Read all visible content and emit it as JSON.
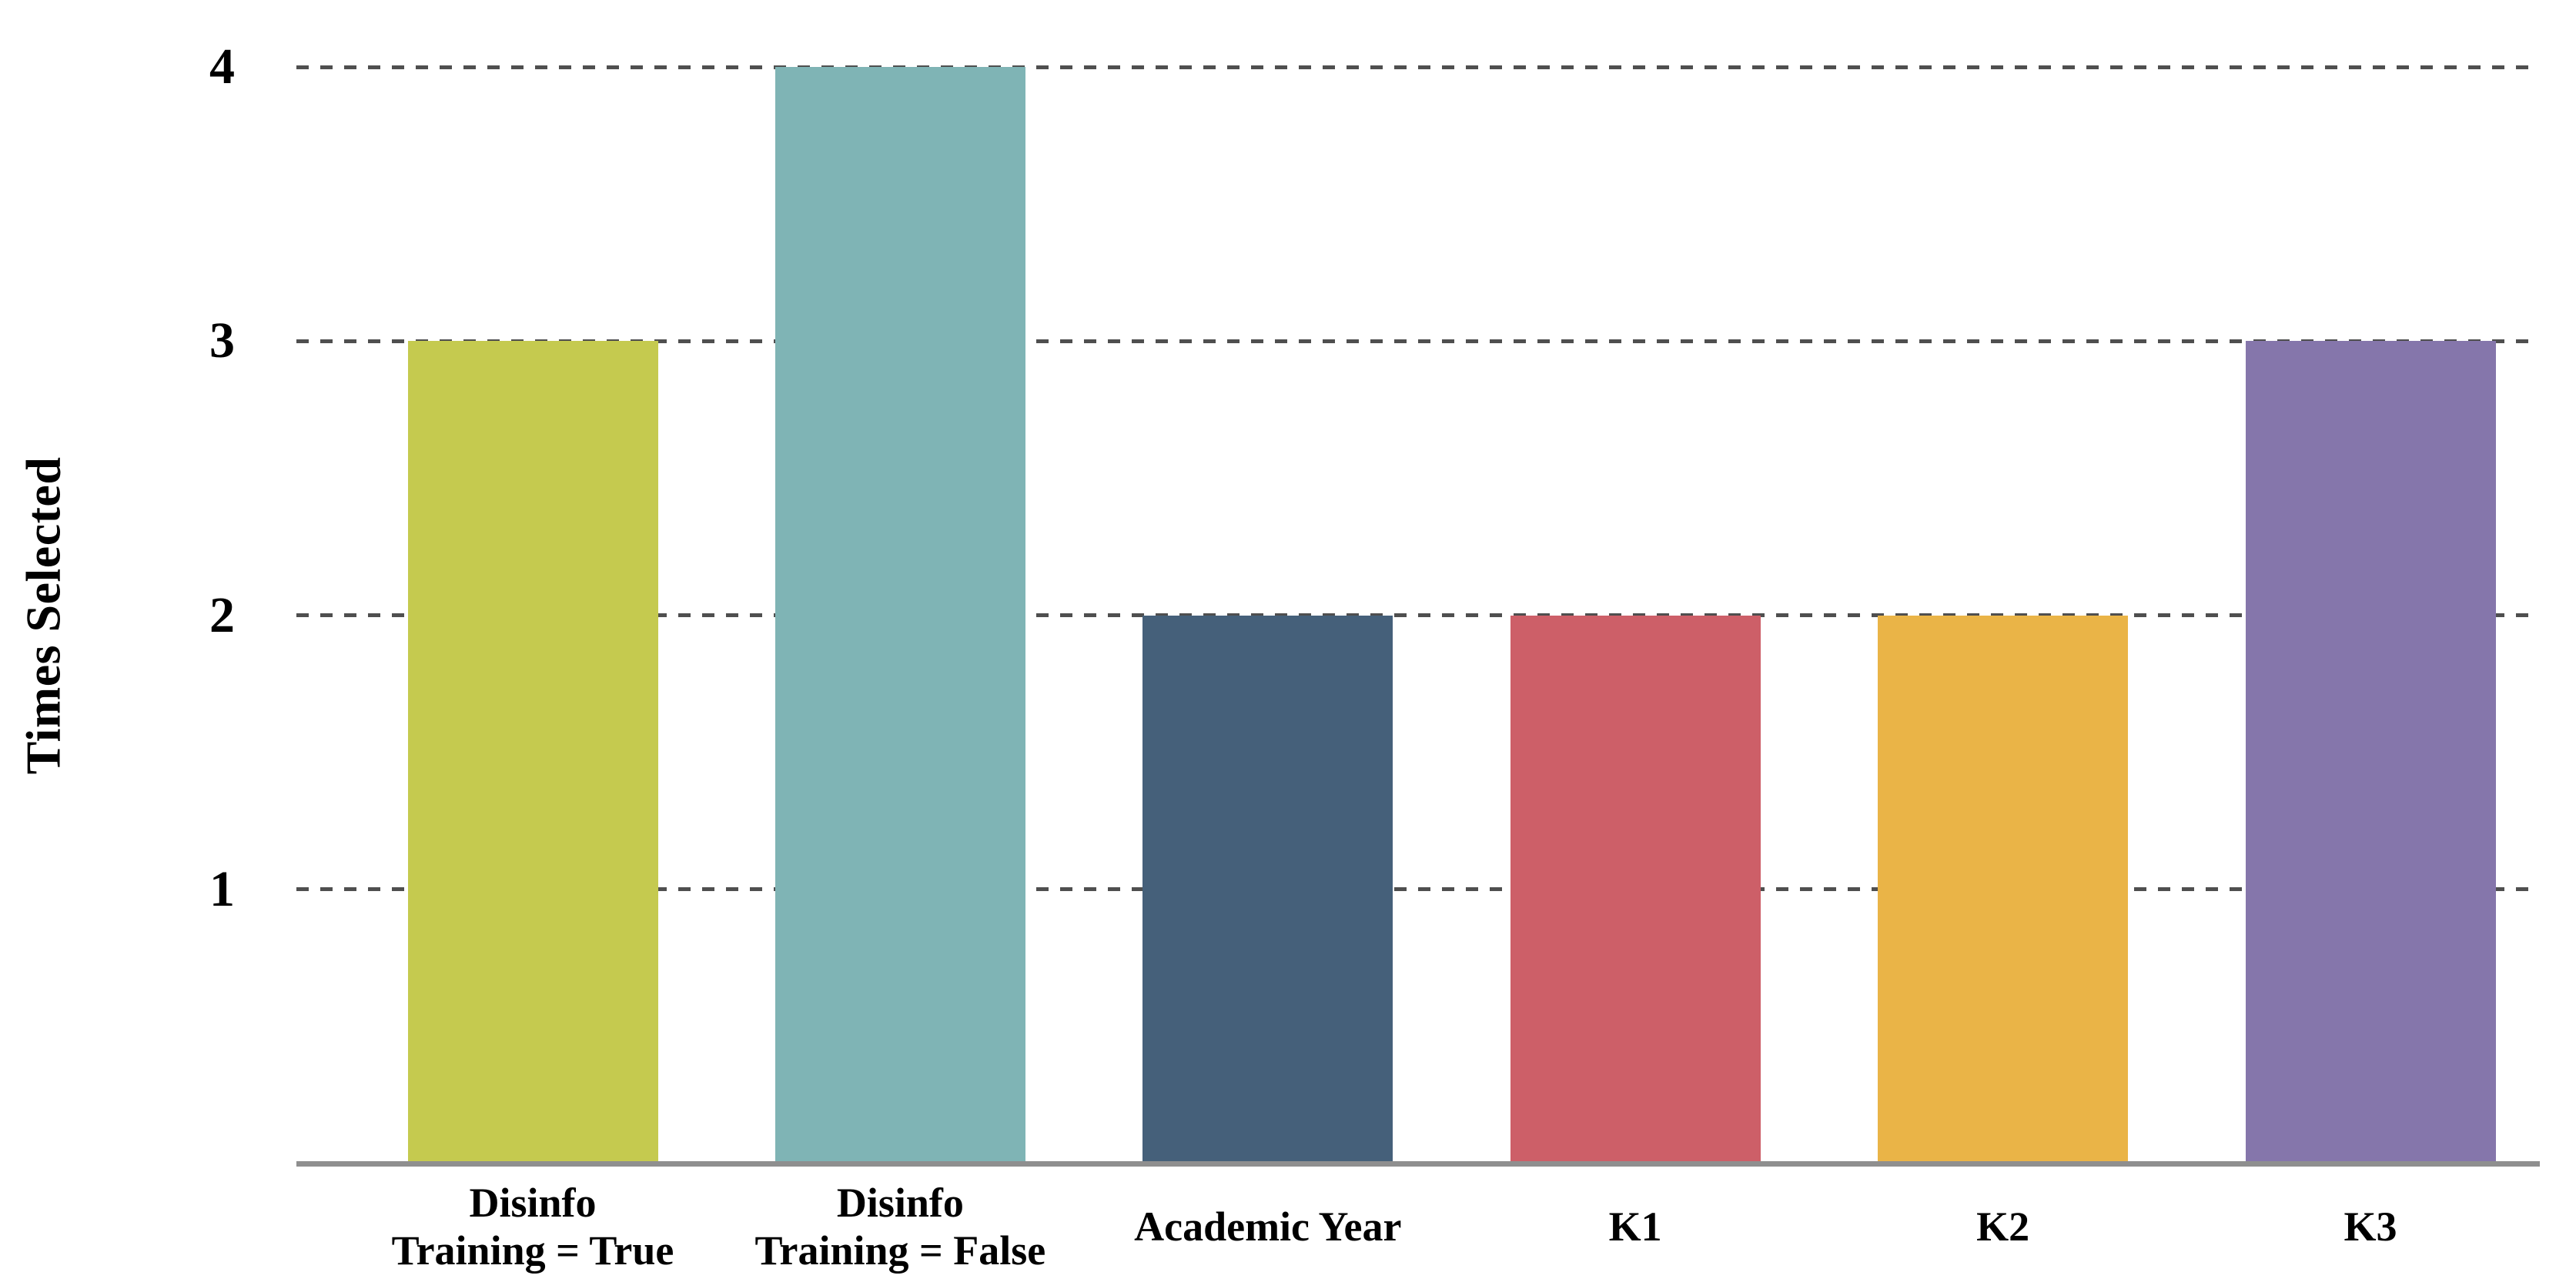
{
  "chart_data": {
    "type": "bar",
    "title": "",
    "xlabel": "",
    "ylabel": "Times Selected",
    "categories": [
      "Disinfo\nTraining = True",
      "Disinfo\nTraining = False",
      "Academic Year",
      "K1",
      "K2",
      "K3"
    ],
    "values": [
      3,
      4,
      2,
      2,
      2,
      3
    ],
    "bar_colors": [
      "#c5ca4f",
      "#7fb4b5",
      "#45607a",
      "#cd5f68",
      "#eab447",
      "#8576ab"
    ],
    "yticks": [
      4,
      3,
      2,
      1
    ],
    "ylim": [
      0,
      4
    ],
    "grid": "horizontal-dashed",
    "grid_color": "#4f4f4f",
    "axis_line_color": "#8f8f8f",
    "text_color": "#000000",
    "background_color": "#ffffff",
    "legend": "none"
  }
}
